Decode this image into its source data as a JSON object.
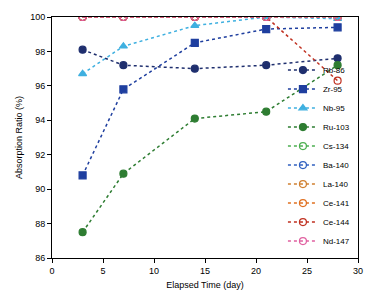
{
  "chart_data": {
    "type": "line",
    "x_label": "Elapsed Time (day)",
    "y_label": "Absorption Ratio (%)",
    "x": [
      3,
      7,
      14,
      21,
      28
    ],
    "xlim": [
      0,
      30
    ],
    "xticks": [
      0,
      5,
      10,
      15,
      20,
      25,
      30
    ],
    "ylim": [
      86,
      100
    ],
    "yticks": [
      86,
      88,
      90,
      92,
      94,
      96,
      98,
      100
    ],
    "grid": false,
    "legend": "lower right",
    "line_style": "dotted",
    "series": [
      {
        "name": "Rb-86",
        "color": "#1f2f6e",
        "marker": "circle",
        "values": [
          98.1,
          97.2,
          97.0,
          97.2,
          97.6
        ]
      },
      {
        "name": "Zr-95",
        "color": "#1f3f9f",
        "marker": "square",
        "values": [
          90.8,
          95.8,
          98.5,
          99.3,
          99.4
        ]
      },
      {
        "name": "Nb-95",
        "color": "#3fb0e0",
        "marker": "triangle-up",
        "values": [
          96.7,
          98.3,
          99.5,
          100.0,
          99.9
        ]
      },
      {
        "name": "Ru-103",
        "color": "#2e7d32",
        "marker": "circle",
        "values": [
          87.5,
          90.9,
          94.1,
          94.5,
          97.2
        ]
      },
      {
        "name": "Cs-134",
        "color": "#4caf50",
        "marker": "circle-open",
        "values": [
          100.0,
          100.0,
          100.0,
          100.0,
          100.0
        ]
      },
      {
        "name": "Ba-140",
        "color": "#3060c0",
        "marker": "circle-open",
        "values": [
          100.0,
          100.0,
          100.0,
          100.0,
          100.0
        ]
      },
      {
        "name": "La-140",
        "color": "#d08030",
        "marker": "circle-open",
        "values": [
          100.0,
          100.0,
          100.0,
          100.0,
          100.0
        ]
      },
      {
        "name": "Ce-141",
        "color": "#e07020",
        "marker": "circle-open",
        "values": [
          100.0,
          100.0,
          100.0,
          100.0,
          100.0
        ]
      },
      {
        "name": "Ce-144",
        "color": "#c03020",
        "marker": "circle-open",
        "values": [
          100.0,
          100.0,
          100.0,
          100.0,
          96.3
        ]
      },
      {
        "name": "Nd-147",
        "color": "#e060a0",
        "marker": "circle-open",
        "values": [
          100.0,
          100.0,
          100.0,
          100.0,
          100.0
        ]
      }
    ]
  }
}
